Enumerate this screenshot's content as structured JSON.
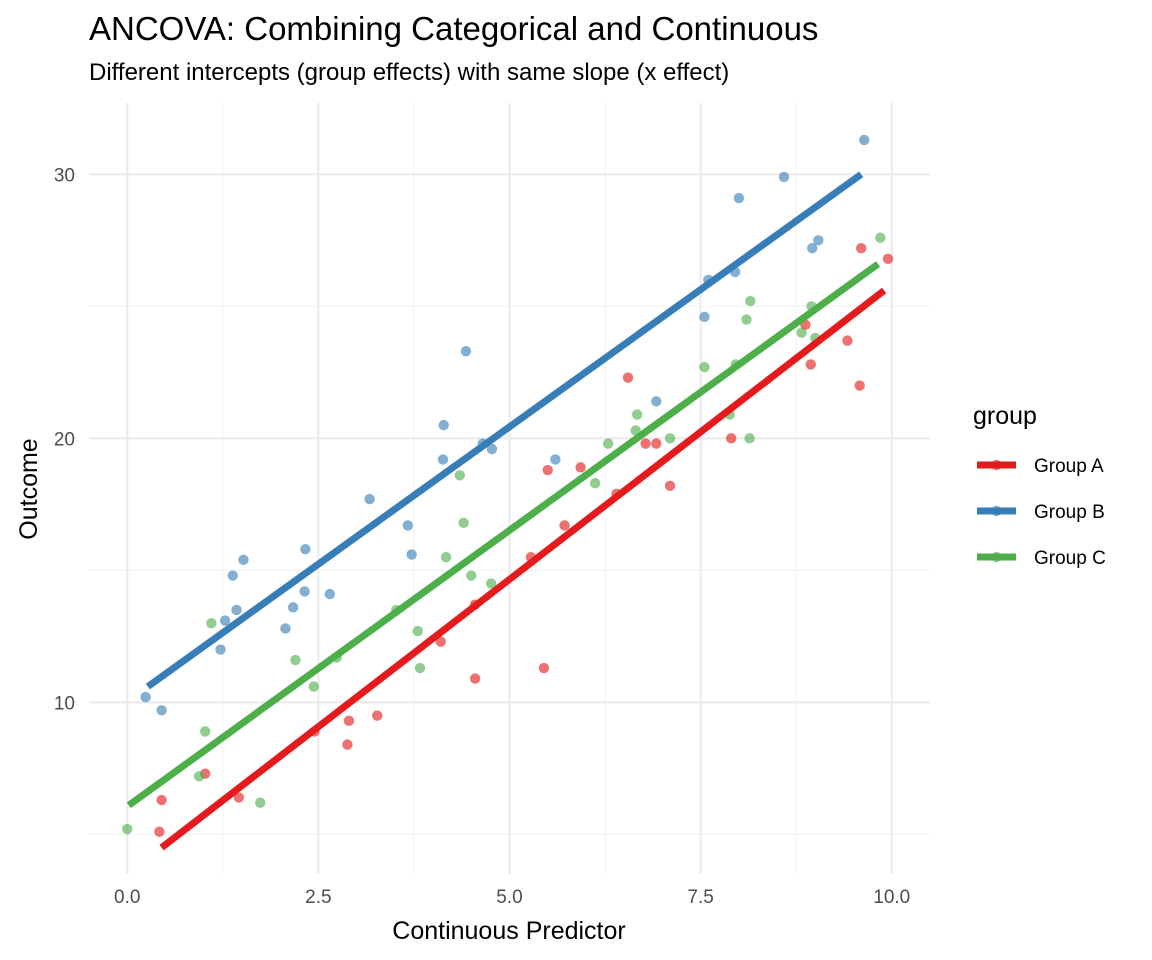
{
  "chart_data": {
    "type": "scatter",
    "title": "ANCOVA: Combining Categorical and Continuous",
    "subtitle": "Different intercepts (group effects) with same slope (x effect)",
    "xlabel": "Continuous Predictor",
    "ylabel": "Outcome",
    "xlim": [
      -0.5,
      10.5
    ],
    "ylim": [
      3.5,
      32.7
    ],
    "x_ticks": [
      0.0,
      2.5,
      5.0,
      7.5,
      10.0
    ],
    "x_tick_labels": [
      "0.0",
      "2.5",
      "5.0",
      "7.5",
      "10.0"
    ],
    "y_ticks": [
      10,
      20,
      30
    ],
    "y_tick_labels": [
      "10",
      "20",
      "30"
    ],
    "grid": true,
    "legend_position": "right",
    "legend_title": "group",
    "series": [
      {
        "name": "Group A",
        "color": "#E41A1C",
        "fit_line": {
          "x": [
            0.45,
            9.9
          ],
          "y": [
            4.5,
            25.6
          ]
        },
        "points": [
          [
            0.42,
            5.1
          ],
          [
            0.45,
            6.3
          ],
          [
            1.02,
            7.3
          ],
          [
            1.46,
            6.4
          ],
          [
            2.45,
            8.9
          ],
          [
            2.88,
            8.4
          ],
          [
            2.9,
            9.3
          ],
          [
            3.27,
            9.5
          ],
          [
            4.1,
            12.3
          ],
          [
            4.55,
            13.7
          ],
          [
            4.55,
            10.9
          ],
          [
            5.28,
            15.5
          ],
          [
            5.45,
            11.3
          ],
          [
            5.5,
            18.8
          ],
          [
            5.72,
            16.7
          ],
          [
            5.93,
            18.9
          ],
          [
            6.4,
            17.9
          ],
          [
            6.55,
            22.3
          ],
          [
            6.78,
            19.8
          ],
          [
            6.92,
            19.8
          ],
          [
            7.1,
            18.2
          ],
          [
            7.9,
            20.0
          ],
          [
            8.87,
            24.3
          ],
          [
            8.94,
            22.8
          ],
          [
            9.42,
            23.7
          ],
          [
            9.58,
            22.0
          ],
          [
            9.6,
            27.2
          ],
          [
            9.95,
            26.8
          ]
        ]
      },
      {
        "name": "Group B",
        "color": "#377EB8",
        "fit_line": {
          "x": [
            0.27,
            9.6
          ],
          "y": [
            10.6,
            30.0
          ]
        },
        "points": [
          [
            0.24,
            10.2
          ],
          [
            0.45,
            9.7
          ],
          [
            1.22,
            12.0
          ],
          [
            1.28,
            13.1
          ],
          [
            1.38,
            14.8
          ],
          [
            1.43,
            13.5
          ],
          [
            1.52,
            15.4
          ],
          [
            2.07,
            12.8
          ],
          [
            2.17,
            13.6
          ],
          [
            2.32,
            14.2
          ],
          [
            2.33,
            15.8
          ],
          [
            2.65,
            14.1
          ],
          [
            3.17,
            17.7
          ],
          [
            3.67,
            16.7
          ],
          [
            3.72,
            15.6
          ],
          [
            4.13,
            19.2
          ],
          [
            4.14,
            20.5
          ],
          [
            4.43,
            23.3
          ],
          [
            4.65,
            19.8
          ],
          [
            4.77,
            19.6
          ],
          [
            5.6,
            19.2
          ],
          [
            6.92,
            21.4
          ],
          [
            7.55,
            24.6
          ],
          [
            7.6,
            26.0
          ],
          [
            7.95,
            26.3
          ],
          [
            8.0,
            29.1
          ],
          [
            8.59,
            29.9
          ],
          [
            8.96,
            27.2
          ],
          [
            9.04,
            27.5
          ],
          [
            9.64,
            31.3
          ]
        ]
      },
      {
        "name": "Group C",
        "color": "#4DAF4A",
        "fit_line": {
          "x": [
            0.02,
            9.82
          ],
          "y": [
            6.1,
            26.6
          ]
        },
        "points": [
          [
            0.0,
            5.2
          ],
          [
            0.94,
            7.2
          ],
          [
            1.02,
            8.9
          ],
          [
            1.1,
            13.0
          ],
          [
            1.74,
            6.2
          ],
          [
            2.2,
            11.6
          ],
          [
            2.44,
            10.6
          ],
          [
            2.74,
            11.7
          ],
          [
            3.52,
            13.5
          ],
          [
            3.8,
            12.7
          ],
          [
            3.83,
            11.3
          ],
          [
            4.17,
            15.5
          ],
          [
            4.35,
            18.6
          ],
          [
            4.4,
            16.8
          ],
          [
            4.5,
            14.8
          ],
          [
            4.76,
            14.5
          ],
          [
            6.12,
            18.3
          ],
          [
            6.29,
            19.8
          ],
          [
            6.65,
            20.3
          ],
          [
            6.67,
            20.9
          ],
          [
            7.1,
            20.0
          ],
          [
            7.55,
            22.7
          ],
          [
            7.88,
            20.9
          ],
          [
            7.96,
            22.8
          ],
          [
            8.1,
            24.5
          ],
          [
            8.14,
            20.0
          ],
          [
            8.15,
            25.2
          ],
          [
            8.82,
            24.0
          ],
          [
            8.95,
            25.0
          ],
          [
            9.0,
            23.8
          ],
          [
            9.85,
            27.6
          ]
        ]
      }
    ]
  }
}
